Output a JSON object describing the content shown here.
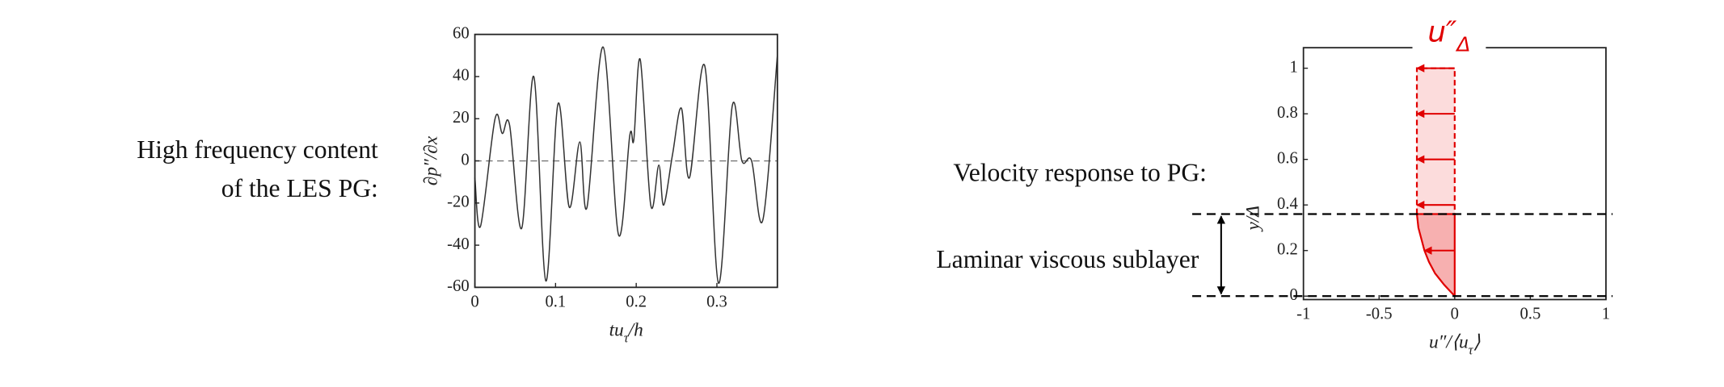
{
  "chart_data": [
    {
      "type": "line",
      "annotation": [
        "High frequency content",
        "of the LES PG:"
      ],
      "y_label": "∂p″/∂x",
      "x_label": [
        {
          "text": "tu"
        },
        {
          "text": "τ",
          "sub": true
        },
        {
          "text": "/h"
        }
      ],
      "x": [
        0,
        0.007,
        0.025,
        0.034,
        0.043,
        0.058,
        0.073,
        0.088,
        0.103,
        0.117,
        0.13,
        0.139,
        0.159,
        0.178,
        0.192,
        0.197,
        0.205,
        0.218,
        0.228,
        0.234,
        0.245,
        0.256,
        0.266,
        0.285,
        0.302,
        0.319,
        0.331,
        0.343,
        0.357,
        0.375
      ],
      "values": [
        -8,
        -31,
        20,
        13,
        17,
        -32,
        40,
        -57,
        27,
        -22,
        9,
        -22,
        54,
        -35,
        12,
        10,
        48,
        -21,
        -2,
        -21,
        3,
        25,
        -8,
        45,
        -58,
        26,
        0,
        0,
        -28,
        50
      ],
      "color": "#333333",
      "reference_line": 0,
      "xlim": [
        0,
        0.375
      ],
      "ylim": [
        -60,
        60
      ],
      "xticks": [
        0,
        0.1,
        0.2,
        0.3
      ],
      "yticks": [
        -60,
        -40,
        -20,
        0,
        20,
        40,
        60
      ]
    },
    {
      "type": "profile",
      "title": [
        {
          "text": "u″"
        },
        {
          "text": "Δ",
          "sub": true
        }
      ],
      "annotation": [
        "Velocity response to PG:",
        "Laminar viscous sublayer"
      ],
      "y_label": "y/Δ",
      "x_label": [
        {
          "text": "u″/⟨u"
        },
        {
          "text": "τ",
          "sub": true
        },
        {
          "text": "⟩"
        }
      ],
      "color": "#e00000",
      "profile": {
        "y": [
          0,
          0.05,
          0.1,
          0.15,
          0.2,
          0.25,
          0.3,
          0.36
        ],
        "x": [
          0,
          -0.07,
          -0.13,
          -0.17,
          -0.2,
          -0.22,
          -0.24,
          -0.25
        ]
      },
      "response": {
        "y": [
          0.36,
          1
        ],
        "x": [
          -0.25,
          -0.25
        ]
      },
      "arrows": {
        "y": [
          1,
          0.8,
          0.6,
          0.4,
          0.2
        ],
        "x": [
          -0.25,
          -0.25,
          -0.25,
          -0.25,
          -0.2
        ]
      },
      "sublayer_edges": [
        0,
        0.36
      ],
      "xlim": [
        -1,
        1
      ],
      "ylim": [
        -0.015,
        1.09
      ],
      "xticks": [
        -1,
        -0.5,
        0,
        0.5,
        1
      ],
      "yticks": [
        0,
        0.2,
        0.4,
        0.6,
        0.8,
        1
      ]
    }
  ]
}
